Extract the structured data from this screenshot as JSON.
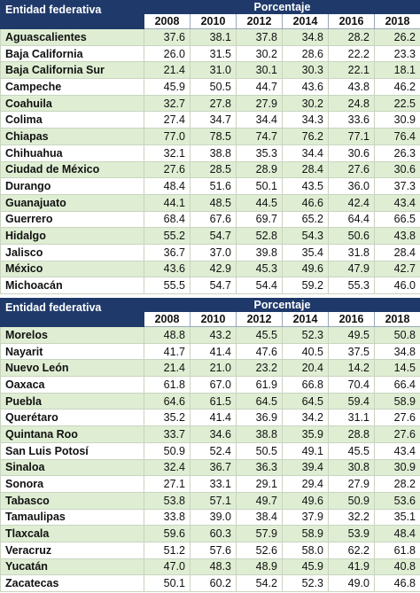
{
  "tables": [
    {
      "header": {
        "entity": "Entidad federativa",
        "group": "Porcentaje",
        "years": [
          "2008",
          "2010",
          "2012",
          "2014",
          "2016",
          "2018"
        ]
      },
      "rows": [
        [
          "Aguascalientes",
          "37.6",
          "38.1",
          "37.8",
          "34.8",
          "28.2",
          "26.2"
        ],
        [
          "Baja California",
          "26.0",
          "31.5",
          "30.2",
          "28.6",
          "22.2",
          "23.3"
        ],
        [
          "Baja California Sur",
          "21.4",
          "31.0",
          "30.1",
          "30.3",
          "22.1",
          "18.1"
        ],
        [
          "Campeche",
          "45.9",
          "50.5",
          "44.7",
          "43.6",
          "43.8",
          "46.2"
        ],
        [
          "Coahuila",
          "32.7",
          "27.8",
          "27.9",
          "30.2",
          "24.8",
          "22.5"
        ],
        [
          "Colima",
          "27.4",
          "34.7",
          "34.4",
          "34.3",
          "33.6",
          "30.9"
        ],
        [
          "Chiapas",
          "77.0",
          "78.5",
          "74.7",
          "76.2",
          "77.1",
          "76.4"
        ],
        [
          "Chihuahua",
          "32.1",
          "38.8",
          "35.3",
          "34.4",
          "30.6",
          "26.3"
        ],
        [
          "Ciudad de México",
          "27.6",
          "28.5",
          "28.9",
          "28.4",
          "27.6",
          "30.6"
        ],
        [
          "Durango",
          "48.4",
          "51.6",
          "50.1",
          "43.5",
          "36.0",
          "37.3"
        ],
        [
          "Guanajuato",
          "44.1",
          "48.5",
          "44.5",
          "46.6",
          "42.4",
          "43.4"
        ],
        [
          "Guerrero",
          "68.4",
          "67.6",
          "69.7",
          "65.2",
          "64.4",
          "66.5"
        ],
        [
          "Hidalgo",
          "55.2",
          "54.7",
          "52.8",
          "54.3",
          "50.6",
          "43.8"
        ],
        [
          "Jalisco",
          "36.7",
          "37.0",
          "39.8",
          "35.4",
          "31.8",
          "28.4"
        ],
        [
          "México",
          "43.6",
          "42.9",
          "45.3",
          "49.6",
          "47.9",
          "42.7"
        ],
        [
          "Michoacán",
          "55.5",
          "54.7",
          "54.4",
          "59.2",
          "55.3",
          "46.0"
        ]
      ]
    },
    {
      "header": {
        "entity": "Entidad federativa",
        "group": "Porcentaje",
        "years": [
          "2008",
          "2010",
          "2012",
          "2014",
          "2016",
          "2018"
        ]
      },
      "rows": [
        [
          "Morelos",
          "48.8",
          "43.2",
          "45.5",
          "52.3",
          "49.5",
          "50.8"
        ],
        [
          "Nayarit",
          "41.7",
          "41.4",
          "47.6",
          "40.5",
          "37.5",
          "34.8"
        ],
        [
          "Nuevo León",
          "21.4",
          "21.0",
          "23.2",
          "20.4",
          "14.2",
          "14.5"
        ],
        [
          "Oaxaca",
          "61.8",
          "67.0",
          "61.9",
          "66.8",
          "70.4",
          "66.4"
        ],
        [
          "Puebla",
          "64.6",
          "61.5",
          "64.5",
          "64.5",
          "59.4",
          "58.9"
        ],
        [
          "Querétaro",
          "35.2",
          "41.4",
          "36.9",
          "34.2",
          "31.1",
          "27.6"
        ],
        [
          "Quintana Roo",
          "33.7",
          "34.6",
          "38.8",
          "35.9",
          "28.8",
          "27.6"
        ],
        [
          "San Luis Potosí",
          "50.9",
          "52.4",
          "50.5",
          "49.1",
          "45.5",
          "43.4"
        ],
        [
          "Sinaloa",
          "32.4",
          "36.7",
          "36.3",
          "39.4",
          "30.8",
          "30.9"
        ],
        [
          "Sonora",
          "27.1",
          "33.1",
          "29.1",
          "29.4",
          "27.9",
          "28.2"
        ],
        [
          "Tabasco",
          "53.8",
          "57.1",
          "49.7",
          "49.6",
          "50.9",
          "53.6"
        ],
        [
          "Tamaulipas",
          "33.8",
          "39.0",
          "38.4",
          "37.9",
          "32.2",
          "35.1"
        ],
        [
          "Tlaxcala",
          "59.6",
          "60.3",
          "57.9",
          "58.9",
          "53.9",
          "48.4"
        ],
        [
          "Veracruz",
          "51.2",
          "57.6",
          "52.6",
          "58.0",
          "62.2",
          "61.8"
        ],
        [
          "Yucatán",
          "47.0",
          "48.3",
          "48.9",
          "45.9",
          "41.9",
          "40.8"
        ],
        [
          "Zacatecas",
          "50.1",
          "60.2",
          "54.2",
          "52.3",
          "49.0",
          "46.8"
        ]
      ]
    }
  ]
}
